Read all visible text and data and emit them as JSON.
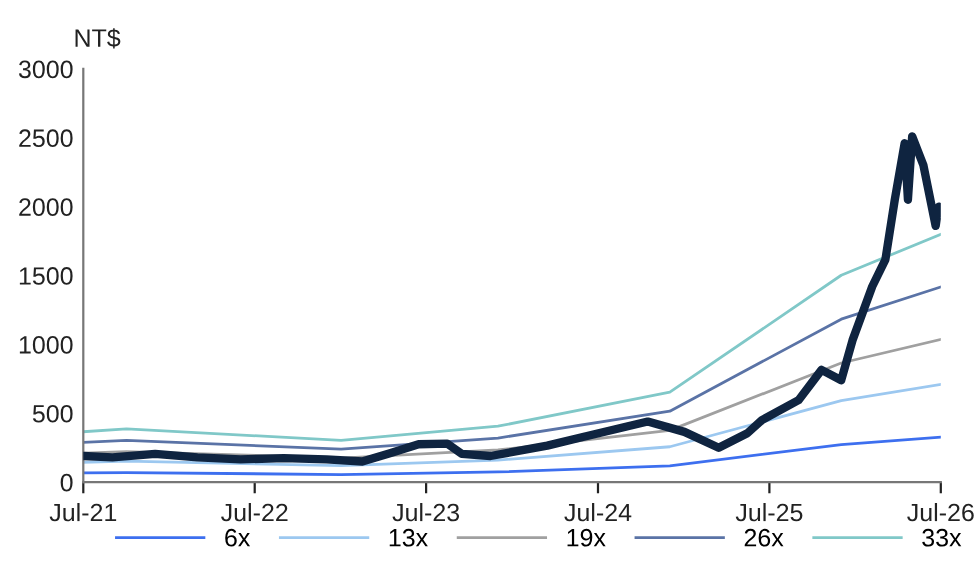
{
  "chart_data": {
    "type": "line",
    "ylabel": "NT$",
    "grid": false,
    "legend": "bottom",
    "marker": "none",
    "line_style": "solid",
    "xlim": [
      "2021-07-01",
      "2026-07-01"
    ],
    "xticks": [
      {
        "value": "2021-07-01",
        "label": "Jul-21"
      },
      {
        "value": "2022-07-01",
        "label": "Jul-22"
      },
      {
        "value": "2023-07-01",
        "label": "Jul-23"
      },
      {
        "value": "2024-07-01",
        "label": "Jul-24"
      },
      {
        "value": "2025-07-01",
        "label": "Jul-25"
      },
      {
        "value": "2026-07-01",
        "label": "Jul-26"
      }
    ],
    "ylim": [
      0,
      3000
    ],
    "yticks": [
      0,
      500,
      1000,
      1500,
      2000,
      2500,
      3000
    ],
    "series": [
      {
        "name": "6x",
        "color": "#3d6fef",
        "x": [
          "2021-07-01",
          "2021-10-01",
          "2023-01-01",
          "2023-12-01",
          "2024-12-01",
          "2025-12-01",
          "2026-07-01"
        ],
        "values": [
          67,
          70,
          55,
          74,
          119,
          273,
          327
        ]
      },
      {
        "name": "13x",
        "color": "#9cc8f0",
        "x": [
          "2021-07-01",
          "2021-10-01",
          "2023-01-01",
          "2023-12-01",
          "2024-12-01",
          "2025-12-01",
          "2026-07-01"
        ],
        "values": [
          144,
          152,
          120,
          160,
          257,
          592,
          709
        ]
      },
      {
        "name": "19x",
        "color": "#a0a0a0",
        "x": [
          "2021-07-01",
          "2021-10-01",
          "2023-01-01",
          "2023-12-01",
          "2024-12-01",
          "2025-12-01",
          "2026-07-01"
        ],
        "values": [
          211,
          222,
          175,
          234,
          376,
          865,
          1036
        ]
      },
      {
        "name": "26x",
        "color": "#5a73a6",
        "x": [
          "2021-07-01",
          "2021-10-01",
          "2023-01-01",
          "2023-12-01",
          "2024-12-01",
          "2025-12-01",
          "2026-07-01"
        ],
        "values": [
          289,
          304,
          239,
          320,
          515,
          1183,
          1417
        ]
      },
      {
        "name": "33x",
        "color": "#80c8c8",
        "x": [
          "2021-07-01",
          "2021-10-01",
          "2023-01-01",
          "2023-12-01",
          "2024-12-01",
          "2025-12-01",
          "2026-07-01"
        ],
        "values": [
          366,
          386,
          304,
          406,
          653,
          1502,
          1799
        ]
      },
      {
        "color": "#0f2440",
        "x": [
          "2021-07-01",
          "2021-09-01",
          "2021-12-01",
          "2022-03-01",
          "2022-06-01",
          "2022-09-01",
          "2022-12-01",
          "2023-02-15",
          "2023-04-15",
          "2023-06-15",
          "2023-08-15",
          "2023-09-15",
          "2023-11-15",
          "2024-03-15",
          "2024-06-01",
          "2024-10-15",
          "2025-01-01",
          "2025-03-15",
          "2025-05-15",
          "2025-06-15",
          "2025-09-01",
          "2025-10-20",
          "2025-12-01",
          "2025-12-25",
          "2026-02-05",
          "2026-03-05",
          "2026-03-25",
          "2026-04-15",
          "2026-04-22",
          "2026-05-01",
          "2026-05-25",
          "2026-06-20",
          "2026-06-27",
          "2026-07-01"
        ],
        "values": [
          190,
          180,
          205,
          180,
          165,
          175,
          165,
          150,
          210,
          275,
          280,
          205,
          190,
          265,
          330,
          440,
          365,
          250,
          355,
          450,
          595,
          815,
          740,
          1030,
          1420,
          1615,
          2050,
          2460,
          2050,
          2510,
          2300,
          1860,
          2000,
          1950
        ]
      }
    ]
  }
}
